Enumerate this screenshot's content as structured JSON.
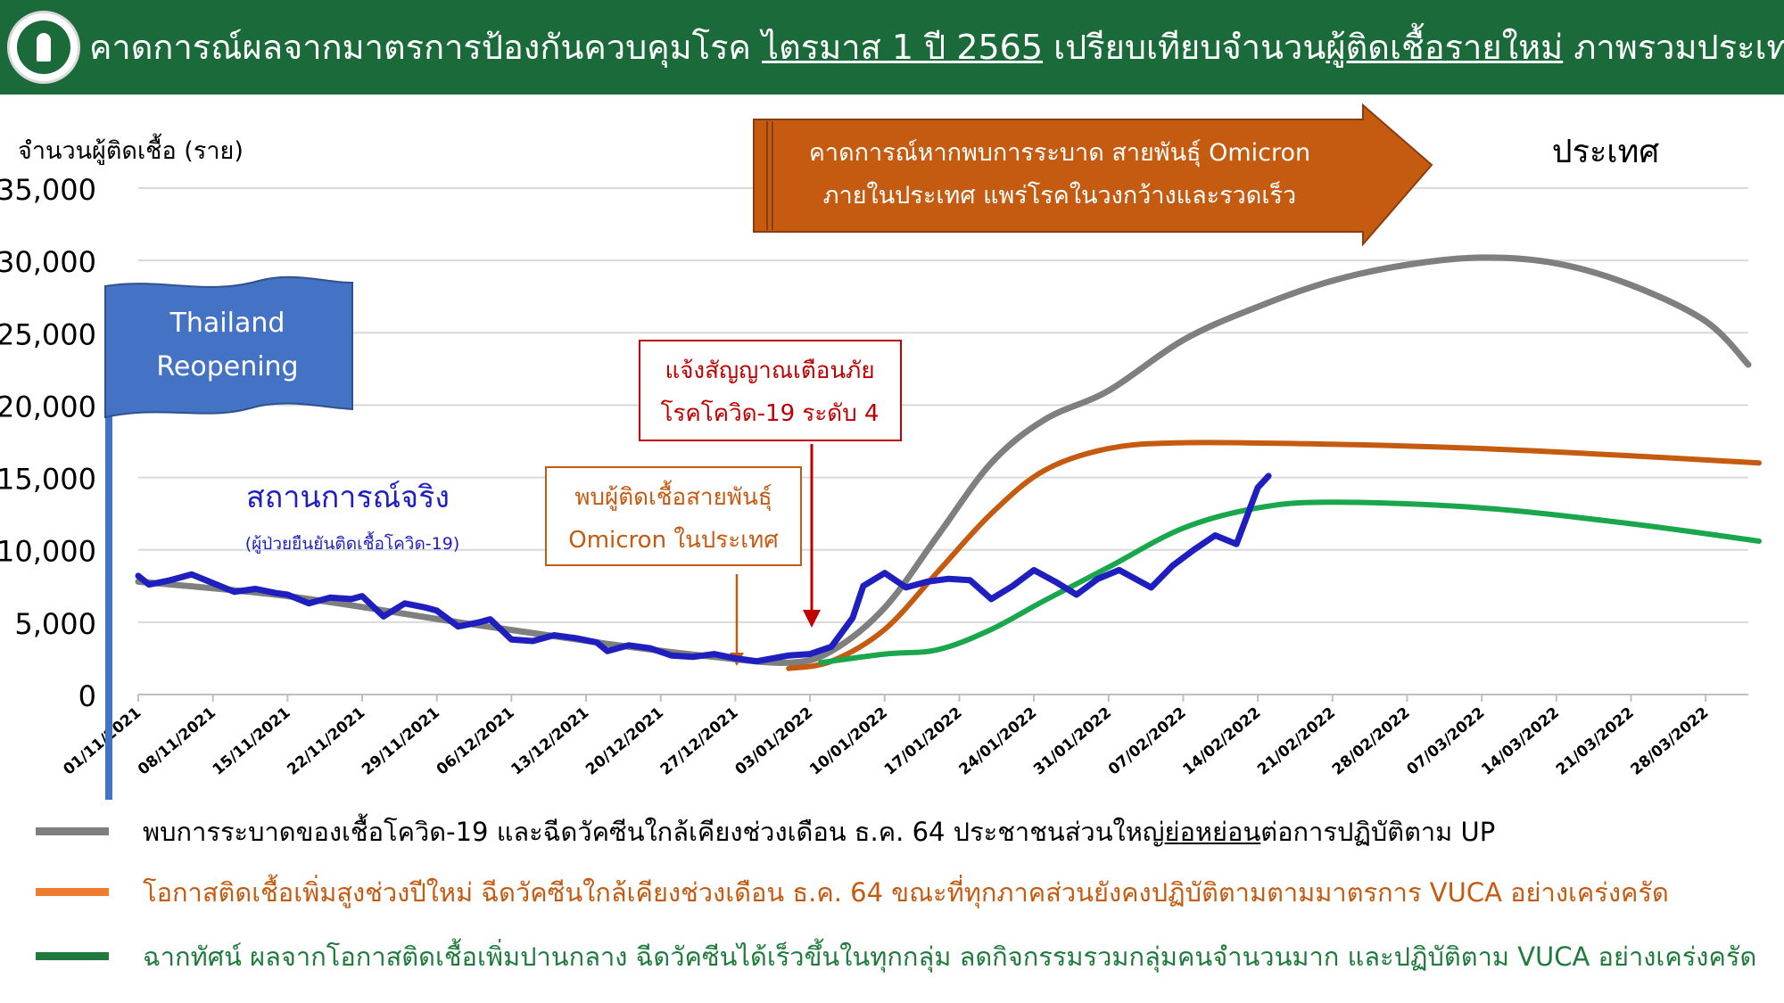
{
  "header": {
    "title_part1": "คาดการณ์ผลจากมาตรการป้องกันควบคุมโรค ",
    "title_part2": "ไตรมาส 1 ปี 2565",
    "title_part3": " เปรียบเทียบจำนวน",
    "title_part4": "ผู้ติดเชื้อรายใหม่",
    "title_part5": " ภาพรวมประเทศ"
  },
  "colors": {
    "header_bg": "#1b6b3a",
    "actual": "#1f1fbf",
    "gray": "#7f7f7f",
    "orange": "#c55a11",
    "green": "#1aa64b",
    "flag": "#4472c4",
    "forecast_arrow": "#c55a11",
    "alert_border": "#c00000",
    "alert_text": "#c00000",
    "omicron_border": "#c55a11",
    "omicron_text": "#c55a11"
  },
  "annotations": {
    "forecast_line1": "คาดการณ์หากพบการระบาด สายพันธุ์ Omicron",
    "forecast_line2": "ภายในประเทศ แพร่โรคในวงกว้างและรวดเร็ว",
    "region": "ประเทศ",
    "flag_line1": "Thailand",
    "flag_line2": "Reopening",
    "alert_line1": "แจ้งสัญญาณเตือนภัย",
    "alert_line2": "โรคโควิด-19 ระดับ 4",
    "omicron_line1": "พบผู้ติดเชื้อสายพันธุ์",
    "omicron_line2": "Omicron ในประเทศ",
    "actual_label": "สถานการณ์จริง",
    "actual_sublabel": "(ผู้ป่วยยืนยันติดเชื้อโควิด-19)"
  },
  "legend": {
    "gray_pre": "พบการระบาดของเชื้อโควิด-19 และฉีดวัคซีนใกล้เคียงช่วงเดือน ธ.ค. 64 ประชาชนส่วนใหญ่",
    "gray_u": "ย่อหย่อน",
    "gray_post": "ต่อการปฏิบัติตาม UP",
    "orange": "โอกาสติดเชื้อเพิ่มสูงช่วงปีใหม่ ฉีดวัคซีนใกล้เคียงช่วงเดือน ธ.ค. 64 ขณะที่ทุกภาคส่วนยังคงปฏิบัติตามตามมาตรการ VUCA อย่างเคร่งครัด",
    "green": "ฉากทัศน์ ผลจากโอกาสติดเชื้อเพิ่มปานกลาง ฉีดวัคซีนได้เร็วขึ้นในทุกกลุ่ม ลดกิจกรรมรวมกลุ่มคนจำนวนมาก และปฏิบัติตาม VUCA อย่างเคร่งครัด"
  },
  "chart_data": {
    "type": "line",
    "ylabel": "จำนวนผู้ติดเชื้อ (ราย)",
    "ylim": [
      0,
      35000
    ],
    "yticks": [
      0,
      5000,
      10000,
      15000,
      20000,
      25000,
      30000,
      35000
    ],
    "ytick_labels": [
      "0",
      "5,000",
      "10,000",
      "15,000",
      "20,000",
      "25,000",
      "30,000",
      "35,000"
    ],
    "x_tick_labels": [
      "01/11/2021",
      "08/11/2021",
      "15/11/2021",
      "22/11/2021",
      "29/11/2021",
      "06/12/2021",
      "13/12/2021",
      "20/12/2021",
      "27/12/2021",
      "03/01/2022",
      "10/01/2022",
      "17/01/2022",
      "24/01/2022",
      "31/01/2022",
      "07/02/2022",
      "14/02/2022",
      "21/02/2022",
      "28/02/2022",
      "07/03/2022",
      "14/03/2022",
      "21/03/2022",
      "28/03/2022"
    ],
    "x_start": "2021-11-01",
    "x_end": "2022-04-01",
    "grid": true,
    "series": [
      {
        "name": "สถานการณ์จริง",
        "color": "#1f1fbf",
        "points": [
          [
            "2021-11-01",
            8200
          ],
          [
            "2021-11-02",
            7600
          ],
          [
            "2021-11-04",
            7900
          ],
          [
            "2021-11-06",
            8300
          ],
          [
            "2021-11-08",
            7700
          ],
          [
            "2021-11-10",
            7100
          ],
          [
            "2021-11-12",
            7300
          ],
          [
            "2021-11-14",
            7000
          ],
          [
            "2021-11-15",
            6900
          ],
          [
            "2021-11-17",
            6300
          ],
          [
            "2021-11-19",
            6700
          ],
          [
            "2021-11-21",
            6600
          ],
          [
            "2021-11-22",
            6800
          ],
          [
            "2021-11-24",
            5400
          ],
          [
            "2021-11-26",
            6300
          ],
          [
            "2021-11-28",
            6000
          ],
          [
            "2021-11-29",
            5800
          ],
          [
            "2021-12-01",
            4700
          ],
          [
            "2021-12-03",
            5000
          ],
          [
            "2021-12-04",
            5200
          ],
          [
            "2021-12-06",
            3800
          ],
          [
            "2021-12-08",
            3700
          ],
          [
            "2021-12-10",
            4100
          ],
          [
            "2021-12-12",
            3900
          ],
          [
            "2021-12-14",
            3600
          ],
          [
            "2021-12-15",
            3000
          ],
          [
            "2021-12-17",
            3400
          ],
          [
            "2021-12-19",
            3200
          ],
          [
            "2021-12-21",
            2700
          ],
          [
            "2021-12-23",
            2600
          ],
          [
            "2021-12-25",
            2800
          ],
          [
            "2021-12-27",
            2500
          ],
          [
            "2021-12-29",
            2300
          ],
          [
            "2022-01-01",
            2700
          ],
          [
            "2022-01-03",
            2800
          ],
          [
            "2022-01-05",
            3300
          ],
          [
            "2022-01-07",
            5300
          ],
          [
            "2022-01-08",
            7500
          ],
          [
            "2022-01-10",
            8400
          ],
          [
            "2022-01-12",
            7400
          ],
          [
            "2022-01-14",
            7800
          ],
          [
            "2022-01-16",
            8000
          ],
          [
            "2022-01-18",
            7900
          ],
          [
            "2022-01-20",
            6600
          ],
          [
            "2022-01-22",
            7500
          ],
          [
            "2022-01-24",
            8600
          ],
          [
            "2022-01-26",
            7800
          ],
          [
            "2022-01-28",
            6900
          ],
          [
            "2022-01-30",
            8000
          ],
          [
            "2022-02-01",
            8600
          ],
          [
            "2022-02-04",
            7400
          ],
          [
            "2022-02-06",
            8900
          ],
          [
            "2022-02-08",
            10000
          ],
          [
            "2022-02-10",
            11000
          ],
          [
            "2022-02-12",
            10400
          ],
          [
            "2022-02-14",
            14300
          ],
          [
            "2022-02-15",
            15100
          ]
        ]
      },
      {
        "name": "พบการระบาดของเชื้อโควิด-19 และฉีดวัคซีนใกล้เคียงช่วงเดือน ธ.ค. 64",
        "color": "#7f7f7f",
        "points": [
          [
            "2021-11-01",
            7800
          ],
          [
            "2021-11-15",
            6800
          ],
          [
            "2021-12-01",
            5000
          ],
          [
            "2021-12-15",
            3500
          ],
          [
            "2021-12-25",
            2600
          ],
          [
            "2022-01-01",
            2200
          ],
          [
            "2022-01-05",
            3000
          ],
          [
            "2022-01-10",
            6000
          ],
          [
            "2022-01-15",
            11000
          ],
          [
            "2022-01-20",
            16000
          ],
          [
            "2022-01-25",
            19000
          ],
          [
            "2022-01-31",
            21000
          ],
          [
            "2022-02-07",
            24500
          ],
          [
            "2022-02-14",
            26800
          ],
          [
            "2022-02-21",
            28600
          ],
          [
            "2022-02-28",
            29700
          ],
          [
            "2022-03-07",
            30200
          ],
          [
            "2022-03-14",
            29800
          ],
          [
            "2022-03-21",
            28300
          ],
          [
            "2022-03-28",
            25800
          ],
          [
            "2022-04-01",
            22800
          ]
        ]
      },
      {
        "name": "โอกาสติดเชื้อเพิ่มสูงช่วงปีใหม่",
        "color": "#c55a11",
        "points": [
          [
            "2022-01-01",
            1800
          ],
          [
            "2022-01-05",
            2300
          ],
          [
            "2022-01-10",
            4500
          ],
          [
            "2022-01-15",
            8500
          ],
          [
            "2022-01-20",
            12500
          ],
          [
            "2022-01-25",
            15500
          ],
          [
            "2022-01-31",
            17000
          ],
          [
            "2022-02-07",
            17400
          ],
          [
            "2022-02-21",
            17300
          ],
          [
            "2022-03-07",
            17000
          ],
          [
            "2022-03-21",
            16500
          ],
          [
            "2022-04-02",
            16000
          ]
        ]
      },
      {
        "name": "ฉากทัศน์ ผลจากโอกาสติดเชื้อเพิ่มปานกลาง",
        "color": "#1aa64b",
        "points": [
          [
            "2022-01-04",
            2200
          ],
          [
            "2022-01-10",
            2800
          ],
          [
            "2022-01-15",
            3100
          ],
          [
            "2022-01-20",
            4500
          ],
          [
            "2022-01-25",
            6500
          ],
          [
            "2022-01-31",
            8800
          ],
          [
            "2022-02-07",
            11500
          ],
          [
            "2022-02-14",
            12900
          ],
          [
            "2022-02-21",
            13300
          ],
          [
            "2022-03-07",
            12900
          ],
          [
            "2022-03-21",
            11800
          ],
          [
            "2022-04-02",
            10600
          ]
        ]
      }
    ]
  }
}
